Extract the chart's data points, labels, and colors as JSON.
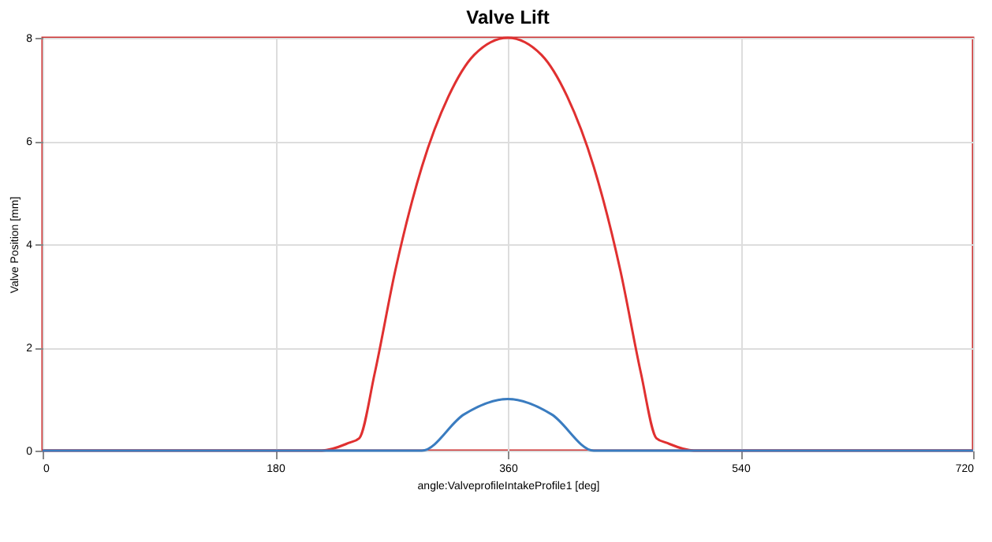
{
  "chart_data": {
    "type": "line",
    "title": "Valve Lift",
    "xlabel": "angle:ValveprofileIntakeProfile1 [deg]",
    "ylabel": "Valve Position [mm]",
    "xlim": [
      0,
      720
    ],
    "xticks": [
      0,
      180,
      360,
      540,
      720
    ],
    "ylim": [
      0,
      8
    ],
    "yticks": [
      0,
      2,
      4,
      6,
      8
    ],
    "grid": true,
    "line_style": "solid",
    "series": [
      {
        "color": "#e03030",
        "x": [
          0,
          216,
          237,
          245,
          257,
          273,
          293.5,
          314,
          334,
          360,
          386,
          406,
          426.5,
          447,
          463,
          475,
          483,
          504,
          720
        ],
        "values": [
          0,
          0,
          0.15,
          0.24,
          1.5,
          3.5,
          5.5,
          6.86,
          7.67,
          8,
          7.67,
          6.86,
          5.5,
          3.5,
          1.5,
          0.24,
          0.15,
          0,
          0
        ]
      },
      {
        "color": "#3a7cc0",
        "x": [
          0,
          293.5,
          326,
          360,
          394,
          426.5,
          720
        ],
        "values": [
          0,
          0,
          0.7,
          1.0,
          0.7,
          0,
          0
        ]
      }
    ]
  }
}
